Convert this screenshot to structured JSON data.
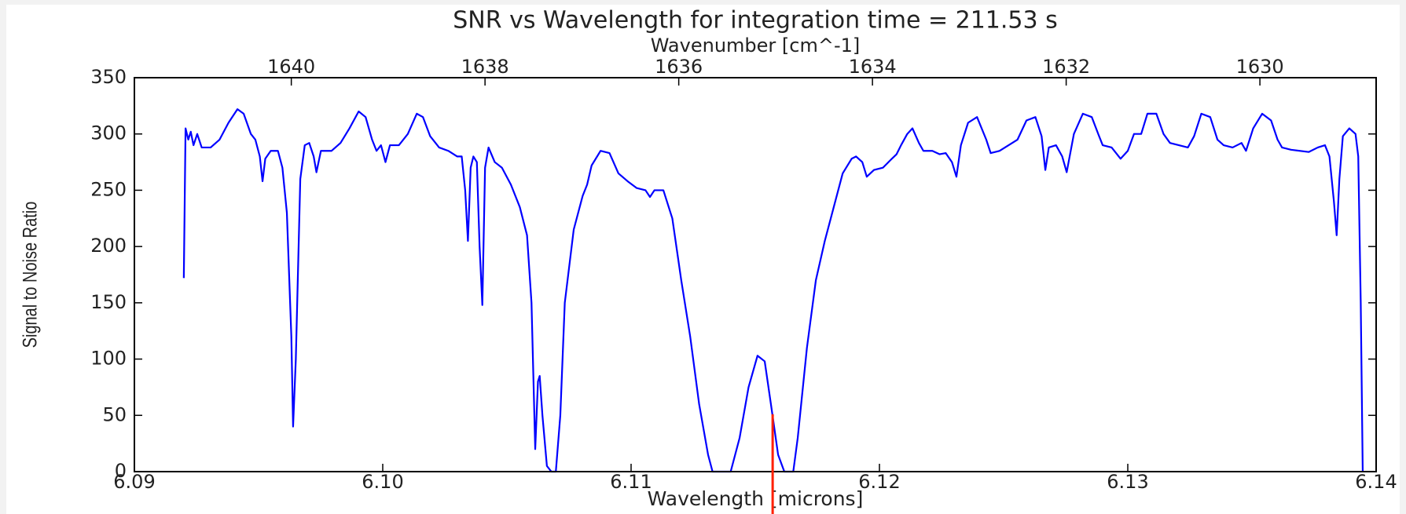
{
  "chart_data": {
    "type": "line",
    "title": "SNR vs Wavelength for integration time = 211.53 s",
    "xlabel": "Wavelength [microns]",
    "ylabel": "Signal to Noise Ratio",
    "x2label": "Wavenumber [cm^-1]",
    "xlim": [
      6.09,
      6.14
    ],
    "xticks": [
      {
        "value": 6.09,
        "label": "6.09"
      },
      {
        "value": 6.1,
        "label": "6.10"
      },
      {
        "value": 6.11,
        "label": "6.11"
      },
      {
        "value": 6.12,
        "label": "6.12"
      },
      {
        "value": 6.13,
        "label": "6.13"
      },
      {
        "value": 6.14,
        "label": "6.14"
      }
    ],
    "ylim": [
      0,
      350
    ],
    "yticks": [
      0,
      50,
      100,
      150,
      200,
      250,
      300,
      350
    ],
    "x2lim": [
      1641.62,
      1628.8
    ],
    "x2ticks": [
      1640,
      1638,
      1636,
      1634,
      1632,
      1630
    ],
    "color": "#0000ff",
    "x": [
      6.09199,
      6.09206,
      6.09217,
      6.09227,
      6.09238,
      6.09253,
      6.09271,
      6.09307,
      6.09343,
      6.09379,
      6.09415,
      6.0944,
      6.09469,
      6.09487,
      6.09505,
      6.09516,
      6.09527,
      6.09549,
      6.09578,
      6.09596,
      6.09614,
      6.09632,
      6.09639,
      6.0965,
      6.09668,
      6.09686,
      6.09704,
      6.09722,
      6.09733,
      6.09751,
      6.09794,
      6.0983,
      6.09866,
      6.09903,
      6.09931,
      6.09957,
      6.09975,
      6.09993,
      6.10011,
      6.10029,
      6.10065,
      6.10101,
      6.10137,
      6.10162,
      6.10191,
      6.10227,
      6.10264,
      6.103,
      6.10318,
      6.10332,
      6.10343,
      6.10354,
      6.10365,
      6.10379,
      6.1039,
      6.10401,
      6.10412,
      6.10426,
      6.10451,
      6.1048,
      6.10516,
      6.10552,
      6.10581,
      6.10599,
      6.10614,
      6.10625,
      6.10632,
      6.10643,
      6.10661,
      6.10679,
      6.10697,
      6.10715,
      6.10733,
      6.10769,
      6.10805,
      6.10823,
      6.10841,
      6.10877,
      6.10913,
      6.10949,
      6.10986,
      6.11022,
      6.11058,
      6.11076,
      6.11094,
      6.1113,
      6.11166,
      6.11202,
      6.11238,
      6.11274,
      6.1131,
      6.11328,
      6.11401,
      6.11437,
      6.11473,
      6.11509,
      6.11538,
      6.11563,
      6.11592,
      6.11617,
      6.11653,
      6.11671,
      6.11708,
      6.11744,
      6.1178,
      6.11816,
      6.11852,
      6.11888,
      6.11906,
      6.11931,
      6.11949,
      6.11978,
      6.12014,
      6.1205,
      6.12069,
      6.12087,
      6.12112,
      6.12133,
      6.12159,
      6.12177,
      6.12213,
      6.12242,
      6.12267,
      6.12292,
      6.1231,
      6.12328,
      6.12357,
      6.12393,
      6.1243,
      6.12448,
      6.12484,
      6.1252,
      6.12556,
      6.12592,
      6.12628,
      6.12653,
      6.12668,
      6.12682,
      6.12711,
      6.12736,
      6.12754,
      6.12783,
      6.12819,
      6.12855,
      6.12881,
      6.12899,
      6.12935,
      6.12971,
      6.13,
      6.13025,
      6.13054,
      6.13079,
      6.13115,
      6.13144,
      6.1317,
      6.13206,
      6.13242,
      6.13267,
      6.13296,
      6.13332,
      6.13361,
      6.13386,
      6.13422,
      6.13458,
      6.13476,
      6.13505,
      6.13541,
      6.13577,
      6.13603,
      6.13621,
      6.13657,
      6.13729,
      6.13765,
      6.13794,
      6.13812,
      6.1383,
      6.13841,
      6.13852,
      6.13866,
      6.13892,
      6.13917,
      6.13928,
      6.13938,
      6.13946
    ],
    "values": [
      172,
      305,
      295,
      302,
      290,
      300,
      288,
      288,
      295,
      310,
      322,
      318,
      300,
      295,
      280,
      258,
      278,
      285,
      285,
      270,
      230,
      120,
      40,
      100,
      260,
      290,
      292,
      280,
      266,
      285,
      285,
      292,
      305,
      320,
      315,
      295,
      285,
      290,
      275,
      290,
      290,
      300,
      318,
      315,
      298,
      288,
      285,
      280,
      280,
      250,
      205,
      270,
      280,
      275,
      200,
      148,
      270,
      288,
      275,
      270,
      255,
      235,
      210,
      150,
      20,
      80,
      85,
      50,
      5,
      0,
      0,
      50,
      150,
      215,
      245,
      255,
      272,
      285,
      283,
      265,
      258,
      252,
      250,
      244,
      250,
      250,
      225,
      170,
      120,
      60,
      15,
      0,
      0,
      30,
      75,
      103,
      98,
      60,
      15,
      0,
      0,
      30,
      110,
      170,
      205,
      235,
      265,
      278,
      280,
      275,
      262,
      268,
      270,
      278,
      282,
      290,
      300,
      305,
      292,
      285,
      285,
      282,
      283,
      275,
      262,
      290,
      310,
      315,
      295,
      283,
      285,
      290,
      295,
      312,
      315,
      298,
      268,
      288,
      290,
      280,
      266,
      300,
      318,
      315,
      300,
      290,
      288,
      278,
      285,
      300,
      300,
      318,
      318,
      300,
      292,
      290,
      288,
      298,
      318,
      315,
      295,
      290,
      288,
      292,
      285,
      305,
      318,
      312,
      295,
      288,
      286,
      284,
      288,
      290,
      280,
      240,
      210,
      260,
      298,
      305,
      300,
      280,
      150,
      0
    ],
    "marker": {
      "x": 6.1157,
      "y": 51,
      "color": "#ff2000"
    }
  }
}
